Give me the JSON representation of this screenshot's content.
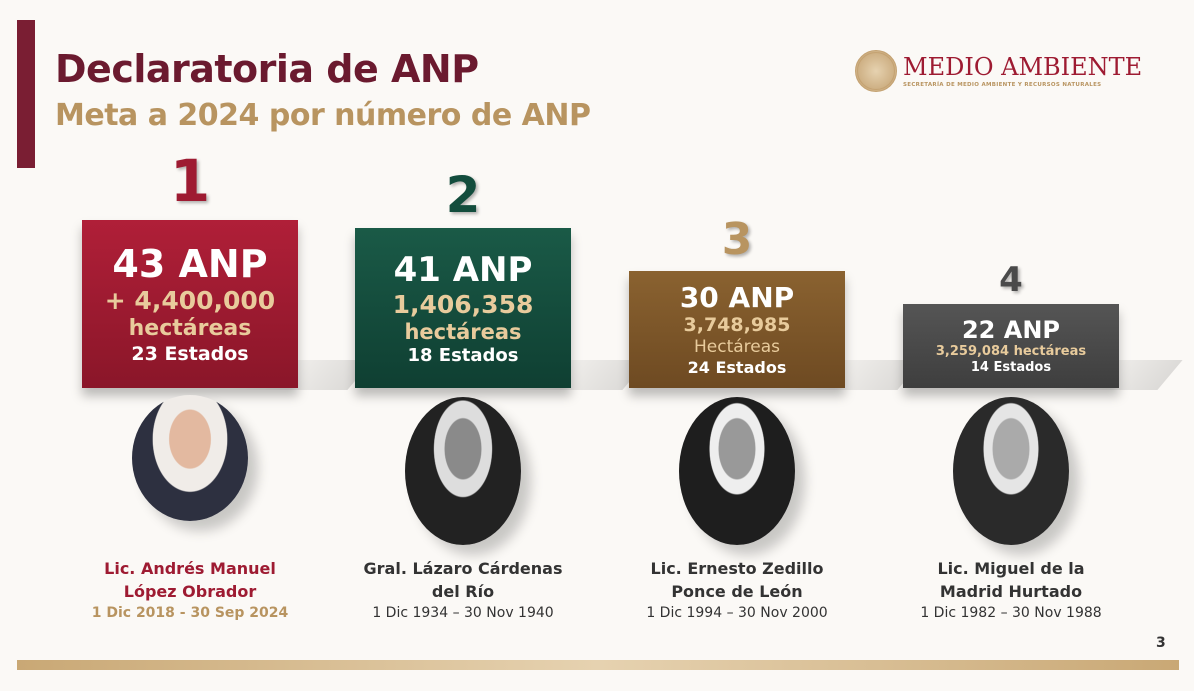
{
  "header": {
    "title": "Declaratoria de ANP",
    "subtitle": "Meta a 2024 por número de ANP"
  },
  "logo": {
    "name": "MEDIO AMBIENTE",
    "subtitle": "SECRETARÍA DE MEDIO AMBIENTE Y RECURSOS NATURALES"
  },
  "ranking": [
    {
      "rank": "1",
      "anp": "43 ANP",
      "hectares": "+ 4,400,000",
      "hectares_label": "hectáreas",
      "states": "23 Estados",
      "name_line1": "Lic. Andrés Manuel",
      "name_line2": "López Obrador",
      "term": "1 Dic 2018 - 30 Sep 2024",
      "color": "#9e1b32"
    },
    {
      "rank": "2",
      "anp": "41 ANP",
      "hectares": "1,406,358",
      "hectares_label": "hectáreas",
      "states": "18 Estados",
      "name_line1": "Gral. Lázaro Cárdenas",
      "name_line2": "del Río",
      "term": "1 Dic 1934 – 30 Nov 1940",
      "color": "#134d3d"
    },
    {
      "rank": "3",
      "anp": "30 ANP",
      "hectares": "3,748,985",
      "hectares_label": "Hectáreas",
      "states": "24 Estados",
      "name_line1": "Lic. Ernesto Zedillo",
      "name_line2": "Ponce de León",
      "term": "1 Dic 1994 – 30 Nov 2000",
      "color": "#7b5428"
    },
    {
      "rank": "4",
      "anp": "22 ANP",
      "hectares": "3,259,084 hectáreas",
      "states": "14 Estados",
      "name_line1": "Lic. Miguel de la",
      "name_line2": "Madrid Hurtado",
      "term": "1 Dic 1982 – 30 Nov 1988",
      "color": "#4a4a4a"
    }
  ],
  "page_number": "3"
}
